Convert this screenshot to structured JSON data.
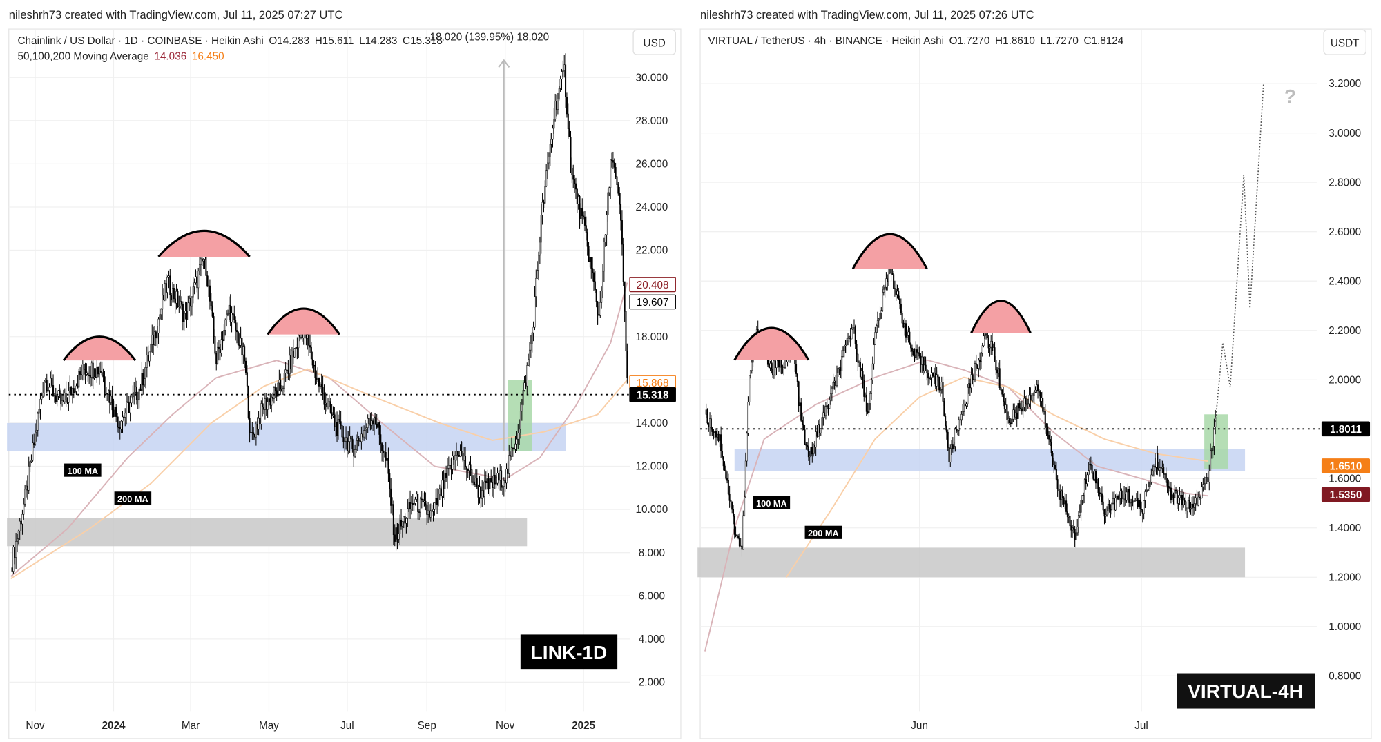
{
  "chart_data": [
    {
      "type": "candlestick",
      "credit": "nileshrh73 created with TradingView.com, Jul 11, 2025 07:27 UTC",
      "title": "Chainlink / US Dollar · 1D · COINBASE · Heikin Ashi",
      "ohlc_text": {
        "o": "O14.283",
        "h": "H15.611",
        "l": "L14.283",
        "c": "C15.318"
      },
      "measure_text": "18,020 (139.95%) 18,020",
      "ma_legend": {
        "label": "50,100,200 Moving Average",
        "v1": "14.036",
        "v2": "16.450"
      },
      "currency": "USD",
      "watermark": "LINK-1D",
      "x_ticks": [
        "Nov",
        "2024",
        "Mar",
        "May",
        "Jul",
        "Sep",
        "Nov",
        "2025"
      ],
      "x_tick_dates": [
        "2023-11-01",
        "2024-01-01",
        "2024-03-01",
        "2024-05-01",
        "2024-07-01",
        "2024-09-01",
        "2024-11-01",
        "2025-01-01"
      ],
      "y_ticks": [
        "30.000",
        "28.000",
        "26.000",
        "24.000",
        "22.000",
        "18.000",
        "14.000",
        "12.000",
        "10.000",
        "8.000",
        "6.000",
        "4.000",
        "2.000"
      ],
      "ylim": [
        1,
        31
      ],
      "grid": true,
      "price": [
        [
          "2023-10-13",
          7.3
        ],
        [
          "2023-10-25",
          10.8
        ],
        [
          "2023-11-08",
          16.1
        ],
        [
          "2023-11-22",
          14.8
        ],
        [
          "2023-12-09",
          16.5
        ],
        [
          "2023-12-22",
          16.5
        ],
        [
          "2024-01-05",
          14.0
        ],
        [
          "2024-01-22",
          15.7
        ],
        [
          "2024-02-02",
          18.1
        ],
        [
          "2024-02-12",
          20.5
        ],
        [
          "2024-02-26",
          18.9
        ],
        [
          "2024-03-12",
          21.8
        ],
        [
          "2024-03-21",
          16.9
        ],
        [
          "2024-03-31",
          19.3
        ],
        [
          "2024-04-12",
          16.9
        ],
        [
          "2024-04-17",
          13.2
        ],
        [
          "2024-04-27",
          14.8
        ],
        [
          "2024-05-11",
          15.7
        ],
        [
          "2024-05-28",
          18.5
        ],
        [
          "2024-06-07",
          16.1
        ],
        [
          "2024-06-21",
          14.0
        ],
        [
          "2024-07-05",
          12.8
        ],
        [
          "2024-07-22",
          14.4
        ],
        [
          "2024-08-01",
          12.0
        ],
        [
          "2024-08-07",
          8.7
        ],
        [
          "2024-08-22",
          10.4
        ],
        [
          "2024-09-05",
          9.7
        ],
        [
          "2024-09-25",
          12.8
        ],
        [
          "2024-10-12",
          10.8
        ],
        [
          "2024-11-02",
          11.6
        ],
        [
          "2024-11-12",
          14.0
        ],
        [
          "2024-11-22",
          18.1
        ],
        [
          "2024-11-29",
          23.4
        ],
        [
          "2024-12-10",
          28.7
        ],
        [
          "2024-12-17",
          30.3
        ],
        [
          "2024-12-23",
          25.4
        ],
        [
          "2025-01-03",
          22.6
        ],
        [
          "2025-01-13",
          18.9
        ],
        [
          "2025-01-23",
          26.6
        ],
        [
          "2025-01-30",
          23.4
        ],
        [
          "2025-02-04",
          16.1
        ]
      ],
      "ma100": [
        [
          "2023-10-13",
          6.9
        ],
        [
          "2023-11-26",
          9.1
        ],
        [
          "2024-01-12",
          12.4
        ],
        [
          "2024-02-16",
          14.4
        ],
        [
          "2024-03-21",
          16.1
        ],
        [
          "2024-05-07",
          16.9
        ],
        [
          "2024-06-17",
          16.1
        ],
        [
          "2024-07-28",
          14.0
        ],
        [
          "2024-09-07",
          12.0
        ],
        [
          "2024-11-01",
          11.4
        ],
        [
          "2024-11-28",
          12.4
        ],
        [
          "2024-12-26",
          14.8
        ],
        [
          "2025-01-22",
          17.7
        ],
        [
          "2025-02-04",
          20.5
        ]
      ],
      "ma200": [
        [
          "2023-10-13",
          6.8
        ],
        [
          "2023-12-13",
          9.1
        ],
        [
          "2024-01-30",
          11.2
        ],
        [
          "2024-03-17",
          14.0
        ],
        [
          "2024-04-27",
          15.7
        ],
        [
          "2024-05-31",
          16.5
        ],
        [
          "2024-07-18",
          15.3
        ],
        [
          "2024-09-11",
          14.0
        ],
        [
          "2024-10-22",
          13.2
        ],
        [
          "2024-12-02",
          13.6
        ],
        [
          "2025-01-12",
          14.4
        ],
        [
          "2025-02-04",
          16.0
        ]
      ],
      "zones": [
        {
          "kind": "support",
          "color": "#c5d3f2",
          "from": "2023-10-10",
          "to": "2024-12-18",
          "low": 12.7,
          "high": 14.0
        },
        {
          "kind": "demand",
          "color": "#c8c8c8",
          "from": "2023-10-10",
          "to": "2024-11-18",
          "low": 8.3,
          "high": 9.6
        },
        {
          "kind": "breakout",
          "color": "#a8d8a8",
          "from": "2024-11-03",
          "to": "2024-11-22",
          "low": 12.7,
          "high": 16.0
        }
      ],
      "domes": [
        {
          "from": "2023-11-23",
          "to": "2024-01-18",
          "base": 16.9,
          "apex": 18.0
        },
        {
          "from": "2024-02-05",
          "to": "2024-04-16",
          "base": 21.7,
          "apex": 22.9
        },
        {
          "from": "2024-04-30",
          "to": "2024-06-25",
          "base": 18.1,
          "apex": 19.3
        }
      ],
      "measure": {
        "date": "2024-10-31",
        "from": 12.7,
        "to": 30.8
      },
      "hline": 15.318,
      "ma_labels": [
        {
          "text": "100 MA",
          "date": "2023-12-08",
          "price": 11.8
        },
        {
          "text": "200 MA",
          "date": "2024-01-16",
          "price": 10.5
        }
      ],
      "price_labels": [
        {
          "text": "20.408",
          "price": 20.408,
          "style": "outline",
          "color": "#8b1e24"
        },
        {
          "text": "19.607",
          "price": 19.607,
          "style": "outline",
          "color": "#000000"
        },
        {
          "text": "15.868",
          "price": 15.868,
          "style": "outline",
          "color": "#f57f17"
        },
        {
          "text": "15.318",
          "price": 15.318,
          "style": "fill",
          "color": "#000000"
        }
      ]
    },
    {
      "type": "candlestick",
      "credit": "nileshrh73 created with TradingView.com, Jul 11, 2025 07:26 UTC",
      "title": "VIRTUAL / TetherUS · 4h · BINANCE · Heikin Ashi",
      "ohlc_text": {
        "o": "O1.7270",
        "h": "H1.8610",
        "l": "L1.7270",
        "c": "C1.8124"
      },
      "currency": "USDT",
      "watermark": "VIRTUAL-4H",
      "x_ticks": [
        "Jun",
        "Jul"
      ],
      "x_tick_dates": [
        "2025-06-01",
        "2025-07-01"
      ],
      "y_ticks": [
        "3.2000",
        "3.0000",
        "2.8000",
        "2.6000",
        "2.4000",
        "2.2000",
        "2.0000",
        "1.6000",
        "1.4000",
        "1.2000",
        "1.0000",
        "0.8000"
      ],
      "ylim": [
        0.7,
        3.3
      ],
      "grid": true,
      "price": [
        [
          "2025-05-03",
          1.86
        ],
        [
          "2025-05-05",
          1.76
        ],
        [
          "2025-05-07",
          1.4
        ],
        [
          "2025-05-08",
          1.31
        ],
        [
          "2025-05-09",
          2.01
        ],
        [
          "2025-05-10",
          2.18
        ],
        [
          "2025-05-12",
          2.04
        ],
        [
          "2025-05-15",
          2.11
        ],
        [
          "2025-05-16",
          1.83
        ],
        [
          "2025-05-17",
          1.68
        ],
        [
          "2025-05-20",
          1.93
        ],
        [
          "2025-05-23",
          2.22
        ],
        [
          "2025-05-25",
          1.86
        ],
        [
          "2025-05-26",
          2.18
        ],
        [
          "2025-05-28",
          2.47
        ],
        [
          "2025-05-29",
          2.33
        ],
        [
          "2025-05-31",
          2.11
        ],
        [
          "2025-06-02",
          2.04
        ],
        [
          "2025-06-04",
          1.97
        ],
        [
          "2025-06-05",
          1.68
        ],
        [
          "2025-06-07",
          1.9
        ],
        [
          "2025-06-10",
          2.18
        ],
        [
          "2025-06-11",
          2.11
        ],
        [
          "2025-06-13",
          1.83
        ],
        [
          "2025-06-15",
          1.9
        ],
        [
          "2025-06-17",
          1.97
        ],
        [
          "2025-06-19",
          1.68
        ],
        [
          "2025-06-20",
          1.54
        ],
        [
          "2025-06-22",
          1.36
        ],
        [
          "2025-06-24",
          1.68
        ],
        [
          "2025-06-26",
          1.47
        ],
        [
          "2025-06-29",
          1.54
        ],
        [
          "2025-07-01",
          1.47
        ],
        [
          "2025-07-03",
          1.68
        ],
        [
          "2025-07-05",
          1.54
        ],
        [
          "2025-07-08",
          1.47
        ],
        [
          "2025-07-10",
          1.61
        ],
        [
          "2025-07-11",
          1.83
        ]
      ],
      "ma100": [
        [
          "2025-05-03",
          0.9
        ],
        [
          "2025-05-07",
          1.4
        ],
        [
          "2025-05-11",
          1.76
        ],
        [
          "2025-05-18",
          1.9
        ],
        [
          "2025-05-26",
          2.01
        ],
        [
          "2025-06-02",
          2.08
        ],
        [
          "2025-06-07",
          2.04
        ],
        [
          "2025-06-13",
          1.97
        ],
        [
          "2025-06-19",
          1.79
        ],
        [
          "2025-06-25",
          1.65
        ],
        [
          "2025-07-01",
          1.6
        ],
        [
          "2025-07-07",
          1.54
        ],
        [
          "2025-07-10",
          1.53
        ]
      ],
      "ma200": [
        [
          "2025-05-14",
          1.2
        ],
        [
          "2025-05-20",
          1.47
        ],
        [
          "2025-05-26",
          1.76
        ],
        [
          "2025-06-01",
          1.93
        ],
        [
          "2025-06-07",
          2.01
        ],
        [
          "2025-06-13",
          1.97
        ],
        [
          "2025-06-19",
          1.86
        ],
        [
          "2025-06-26",
          1.76
        ],
        [
          "2025-07-03",
          1.7
        ],
        [
          "2025-07-10",
          1.67
        ]
      ],
      "projection": [
        [
          "2025-07-11",
          1.83
        ],
        [
          "2025-07-12",
          2.15
        ],
        [
          "2025-07-13",
          1.97
        ],
        [
          "2025-07-14 20:00",
          2.83
        ],
        [
          "2025-07-15 16:00",
          2.29
        ],
        [
          "2025-07-17 12:00",
          3.2
        ]
      ],
      "projection_mark": "?",
      "zones": [
        {
          "kind": "support",
          "color": "#c5d3f2",
          "from": "2025-05-07",
          "to": "2025-07-15",
          "low": 1.63,
          "high": 1.72
        },
        {
          "kind": "demand",
          "color": "#c8c8c8",
          "from": "2025-05-02",
          "to": "2025-07-15",
          "low": 1.2,
          "high": 1.32
        },
        {
          "kind": "breakout",
          "color": "#a8d8a8",
          "from": "2025-07-09 12:00",
          "to": "2025-07-12 16:00",
          "low": 1.64,
          "high": 1.86
        }
      ],
      "domes": [
        {
          "from": "2025-05-07",
          "to": "2025-05-17",
          "base": 2.08,
          "apex": 2.21
        },
        {
          "from": "2025-05-23",
          "to": "2025-06-02",
          "base": 2.45,
          "apex": 2.59
        },
        {
          "from": "2025-06-08",
          "to": "2025-06-16",
          "base": 2.19,
          "apex": 2.32
        }
      ],
      "hline": 1.8011,
      "ma_labels": [
        {
          "text": "100 MA",
          "date": "2025-05-12",
          "price": 1.5
        },
        {
          "text": "200 MA",
          "date": "2025-05-19",
          "price": 1.38
        }
      ],
      "price_labels": [
        {
          "text": "1.8011",
          "price": 1.8011,
          "style": "fill",
          "color": "#000000"
        },
        {
          "text": "1.6510",
          "price": 1.651,
          "style": "fill",
          "color": "#f57f17"
        },
        {
          "text": "1.5350",
          "price": 1.535,
          "style": "fill",
          "color": "#801922"
        }
      ]
    }
  ],
  "colors": {
    "ma100": "#d9b3b8",
    "ma200": "#f9cfa8",
    "dome": "#f4a0a4",
    "ma_legend_v1": "#9c2a3a",
    "ma_legend_v2": "#f57f17"
  }
}
